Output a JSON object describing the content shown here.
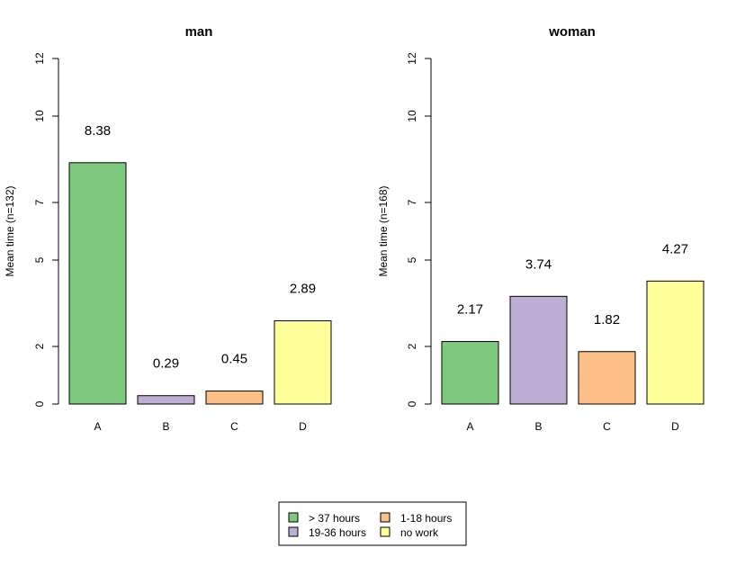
{
  "chart_data": [
    {
      "type": "bar",
      "title": "man",
      "ylabel": "Mean time (n=132)",
      "xlabel": "",
      "categories": [
        "A",
        "B",
        "C",
        "D"
      ],
      "values": [
        8.38,
        0.29,
        0.45,
        2.89
      ],
      "value_labels": [
        "8.38",
        "0.29",
        "0.45",
        "2.89"
      ],
      "yticks": [
        0,
        2,
        5,
        7,
        10,
        12
      ],
      "ytick_labels": [
        "0",
        "2",
        "5",
        "7",
        "10",
        "12"
      ],
      "ylim": [
        0,
        12
      ],
      "grid": false
    },
    {
      "type": "bar",
      "title": "woman",
      "ylabel": "Mean time (n=168)",
      "xlabel": "",
      "categories": [
        "A",
        "B",
        "C",
        "D"
      ],
      "values": [
        2.17,
        3.74,
        1.82,
        4.27
      ],
      "value_labels": [
        "2.17",
        "3.74",
        "1.82",
        "4.27"
      ],
      "yticks": [
        0,
        2,
        5,
        7,
        10,
        12
      ],
      "ytick_labels": [
        "0",
        "2",
        "5",
        "7",
        "10",
        "12"
      ],
      "ylim": [
        0,
        12
      ],
      "grid": false
    }
  ],
  "bar_colors": [
    "#7fc97f",
    "#beaed4",
    "#fdc086",
    "#ffff99"
  ],
  "legend": {
    "placement": "bottom-center",
    "items": [
      {
        "label": "> 37 hours",
        "color": "#7fc97f"
      },
      {
        "label": "19-36 hours",
        "color": "#beaed4"
      },
      {
        "label": "1-18 hours",
        "color": "#fdc086"
      },
      {
        "label": "no work",
        "color": "#ffff99"
      }
    ]
  }
}
